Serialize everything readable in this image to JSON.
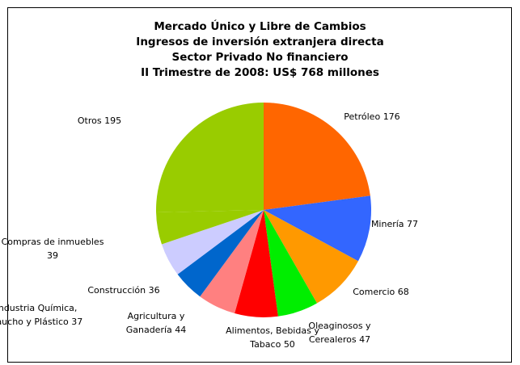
{
  "chart_data": {
    "type": "pie",
    "title": [
      "Mercado Único y Libre de Cambios",
      "Ingresos de inversión extranjera directa",
      "Sector Privado No financiero",
      "II Trimestre de 2008: US$ 768 millones"
    ],
    "categories": [
      "Petróleo",
      "Minería",
      "Comercio",
      "Oleaginosos y Cerealeros",
      "Alimentos, Bebidas y Tabaco",
      "Agricultura y Ganadería",
      "Construcción",
      "Compras de inmuebles",
      "Industria Química, Caucho y Plástico",
      "Otros"
    ],
    "values": [
      176,
      77,
      68,
      47,
      50,
      44,
      36,
      39,
      37,
      195
    ],
    "colors": [
      "#ff6600",
      "#3366ff",
      "#ff9900",
      "#00ee00",
      "#ff0000",
      "#ff8080",
      "#0066cc",
      "#ccccff",
      "#99cc00",
      "#99cc00"
    ]
  }
}
